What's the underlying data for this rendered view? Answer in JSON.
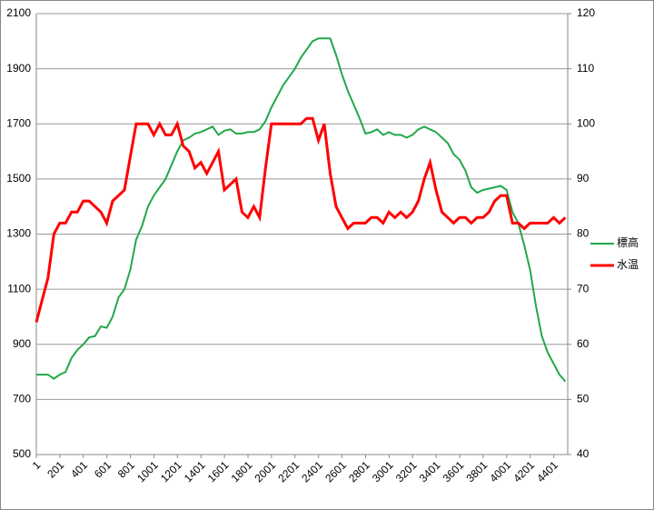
{
  "chart_data": {
    "type": "line",
    "x": [
      1,
      50,
      100,
      150,
      200,
      250,
      300,
      350,
      400,
      450,
      500,
      550,
      600,
      650,
      700,
      750,
      800,
      850,
      900,
      950,
      1000,
      1050,
      1100,
      1150,
      1200,
      1250,
      1300,
      1350,
      1400,
      1450,
      1500,
      1550,
      1600,
      1650,
      1700,
      1750,
      1800,
      1850,
      1900,
      1950,
      2000,
      2050,
      2100,
      2150,
      2200,
      2250,
      2300,
      2350,
      2400,
      2450,
      2500,
      2550,
      2600,
      2650,
      2700,
      2750,
      2800,
      2850,
      2900,
      2950,
      3000,
      3050,
      3100,
      3150,
      3200,
      3250,
      3300,
      3350,
      3400,
      3450,
      3500,
      3550,
      3600,
      3650,
      3700,
      3750,
      3800,
      3850,
      3900,
      3950,
      4000,
      4050,
      4100,
      4150,
      4200,
      4250,
      4300,
      4350,
      4400,
      4450,
      4500
    ],
    "xlim": [
      1,
      4520
    ],
    "xticks": [
      1,
      201,
      401,
      601,
      801,
      1001,
      1201,
      1401,
      1601,
      1801,
      2001,
      2201,
      2401,
      2601,
      2801,
      3001,
      3201,
      3401,
      3601,
      3801,
      4001,
      4201,
      4401
    ],
    "ylim": [
      500,
      2100
    ],
    "yticks": [
      500,
      700,
      900,
      1100,
      1300,
      1500,
      1700,
      1900,
      2100
    ],
    "y2lim": [
      40,
      120
    ],
    "y2ticks": [
      40,
      50,
      60,
      70,
      80,
      90,
      100,
      110,
      120
    ],
    "grid": true,
    "legend": "right",
    "series": [
      {
        "name": "標高",
        "color": "#22a84a",
        "values": [
          790,
          790,
          790,
          775,
          790,
          800,
          850,
          880,
          900,
          925,
          930,
          965,
          960,
          1000,
          1070,
          1100,
          1170,
          1280,
          1330,
          1400,
          1440,
          1470,
          1500,
          1550,
          1600,
          1640,
          1650,
          1665,
          1670,
          1680,
          1690,
          1660,
          1675,
          1680,
          1665,
          1665,
          1670,
          1670,
          1680,
          1710,
          1760,
          1800,
          1840,
          1870,
          1900,
          1940,
          1970,
          2000,
          2010,
          2010,
          2010,
          1950,
          1880,
          1820,
          1770,
          1720,
          1665,
          1670,
          1680,
          1660,
          1670,
          1660,
          1660,
          1650,
          1660,
          1680,
          1690,
          1680,
          1670,
          1650,
          1630,
          1590,
          1570,
          1530,
          1470,
          1450,
          1460,
          1465,
          1470,
          1475,
          1460,
          1380,
          1340,
          1260,
          1170,
          1040,
          930,
          870,
          830,
          790,
          765
        ]
      },
      {
        "name": "水温",
        "color": "#ff0000",
        "axis": "y2",
        "values": [
          64,
          68,
          72,
          80,
          82,
          82,
          84,
          84,
          86,
          86,
          85,
          84,
          82,
          86,
          87,
          88,
          94,
          100,
          100,
          100,
          98,
          100,
          98,
          98,
          100,
          96,
          95,
          92,
          93,
          91,
          93,
          95,
          88,
          89,
          90,
          84,
          83,
          85,
          83,
          92,
          100,
          100,
          100,
          100,
          100,
          100,
          101,
          101,
          97,
          100,
          91,
          85,
          83,
          81,
          82,
          82,
          82,
          83,
          83,
          82,
          84,
          83,
          84,
          83,
          84,
          86,
          90,
          93,
          88,
          84,
          83,
          82,
          83,
          83,
          82,
          83,
          83,
          84,
          86,
          87,
          87,
          82,
          82,
          81,
          82,
          82,
          82,
          82,
          83,
          82,
          83
        ]
      }
    ]
  }
}
